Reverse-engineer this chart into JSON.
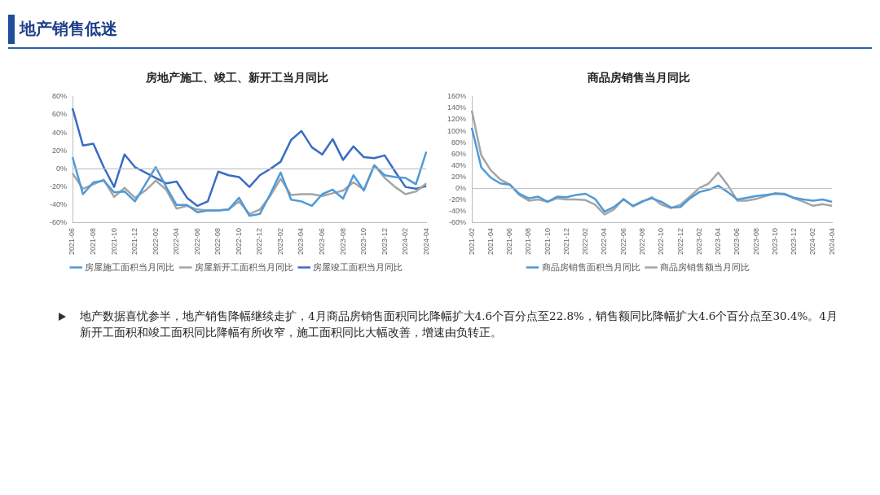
{
  "chart_data": [
    {
      "type": "line",
      "title": "房地产施工、竣工、新开工当月同比",
      "categories": [
        "2021-06",
        null,
        "2021-08",
        null,
        "2021-10",
        null,
        "2021-12",
        null,
        "2022-02",
        null,
        "2022-04",
        null,
        "2022-06",
        null,
        "2022-08",
        null,
        "2022-10",
        null,
        "2022-12",
        null,
        "2023-02",
        null,
        "2023-04",
        null,
        "2023-06",
        null,
        "2023-08",
        null,
        "2023-10",
        null,
        "2023-12",
        null,
        "2024-02",
        null,
        "2024-04"
      ],
      "series": [
        {
          "name": "房屋施工面积当月同比",
          "color": "#4f9ad8",
          "values": [
            13,
            -28,
            -15,
            -13,
            -26,
            -25,
            -36,
            -17,
            2,
            -20,
            -40,
            -40,
            -48,
            -46,
            -46,
            -45,
            -32,
            -52,
            -50,
            -28,
            -4,
            -34,
            -36,
            -41,
            -28,
            -23,
            -33,
            -7,
            -24,
            4,
            -7,
            -9,
            -10,
            -17,
            19
          ]
        },
        {
          "name": "房屋新开工面积当月同比",
          "color": "#a5a5a5",
          "values": [
            -5,
            -22,
            -17,
            -12,
            -31,
            -21,
            -32,
            -24,
            -13,
            -23,
            -44,
            -41,
            -45,
            -46,
            -46,
            -45,
            -36,
            -50,
            -45,
            -30,
            -11,
            -29,
            -28,
            -28,
            -30,
            -27,
            -24,
            -15,
            -23,
            4,
            -10,
            -20,
            -28,
            -25,
            -16
          ]
        },
        {
          "name": "房屋竣工面积当月同比",
          "color": "#3a6cc4",
          "values": [
            67,
            26,
            28,
            2,
            -20,
            16,
            2,
            -4,
            -10,
            -16,
            -14,
            -32,
            -41,
            -36,
            -3,
            -7,
            -9,
            -20,
            -7,
            0,
            8,
            32,
            42,
            24,
            16,
            33,
            10,
            25,
            13,
            12,
            15,
            -3,
            -20,
            -22,
            -19
          ]
        }
      ],
      "ylim": [
        -60,
        80
      ],
      "yticks": [
        {
          "value": -60,
          "label": "-60%"
        },
        {
          "value": -40,
          "label": "-40%"
        },
        {
          "value": -20,
          "label": "-20%"
        },
        {
          "value": 0,
          "label": "0%"
        },
        {
          "value": 20,
          "label": "20%"
        },
        {
          "value": 40,
          "label": "40%"
        },
        {
          "value": 60,
          "label": "60%"
        },
        {
          "value": 80,
          "label": "80%"
        }
      ],
      "grid": false,
      "legend": "bottom",
      "marker": "none",
      "ref_lines": [
        {
          "axis": "y",
          "value": 0,
          "color": "#bbbbbb"
        }
      ]
    },
    {
      "type": "line",
      "title": "商品房销售当月同比",
      "categories": [
        "2021-02",
        null,
        "2021-04",
        null,
        "2021-06",
        null,
        "2021-08",
        null,
        "2021-10",
        null,
        "2021-12",
        null,
        "2022-02",
        null,
        "2022-04",
        null,
        "2022-06",
        null,
        "2022-08",
        null,
        "2022-10",
        null,
        "2022-12",
        null,
        "2023-02",
        null,
        "2023-04",
        null,
        "2023-06",
        null,
        "2023-08",
        null,
        "2023-10",
        null,
        "2023-12",
        null,
        "2024-02",
        null,
        "2024-04"
      ],
      "series": [
        {
          "name": "商品房销售面积当月同比",
          "color": "#4f9ad8",
          "values": [
            106,
            37,
            19,
            9,
            7,
            -9,
            -17,
            -14,
            -23,
            -14,
            -15,
            -11,
            -9,
            -18,
            -40,
            -32,
            -19,
            -30,
            -22,
            -17,
            -23,
            -33,
            -32,
            -17,
            -6,
            -2,
            5,
            -6,
            -19,
            -16,
            -13,
            -11,
            -9,
            -10,
            -16,
            -19,
            -21,
            -19,
            -23
          ]
        },
        {
          "name": "商品房销售额当月同比",
          "color": "#a5a5a5",
          "values": [
            136,
            58,
            32,
            16,
            7,
            -11,
            -21,
            -19,
            -23,
            -17,
            -19,
            -19,
            -20,
            -28,
            -45,
            -36,
            -18,
            -31,
            -23,
            -15,
            -28,
            -34,
            -28,
            -14,
            1,
            9,
            28,
            6,
            -21,
            -21,
            -18,
            -13,
            -8,
            -9,
            -17,
            -23,
            -30,
            -27,
            -30
          ]
        }
      ],
      "ylim": [
        -60,
        160
      ],
      "yticks": [
        {
          "value": -60,
          "label": "-60%"
        },
        {
          "value": -40,
          "label": "-40%"
        },
        {
          "value": -20,
          "label": "-20%"
        },
        {
          "value": 0,
          "label": "0%"
        },
        {
          "value": 20,
          "label": "20%"
        },
        {
          "value": 40,
          "label": "40%"
        },
        {
          "value": 60,
          "label": "60%"
        },
        {
          "value": 80,
          "label": "80%"
        },
        {
          "value": 100,
          "label": "100%"
        },
        {
          "value": 120,
          "label": "120%"
        },
        {
          "value": 140,
          "label": "140%"
        },
        {
          "value": 160,
          "label": "160%"
        }
      ],
      "grid": false,
      "legend": "bottom",
      "marker": "none",
      "ref_lines": [
        {
          "axis": "y",
          "value": 0,
          "color": "#bbbbbb"
        }
      ]
    },
    {
      "type": "other",
      "title": "地产销售低迷",
      "annotations": [
        "地产数据喜忧参半，地产销售降幅继续走扩，4月商品房销售面积同比降幅扩大4.6个百分点至22.8%，销售额同比降幅扩大4.6个百分点至30.4%。4月新开工面积和竣工面积同比降幅有所收窄，施工面积同比大幅改善，增速由负转正。"
      ]
    }
  ]
}
